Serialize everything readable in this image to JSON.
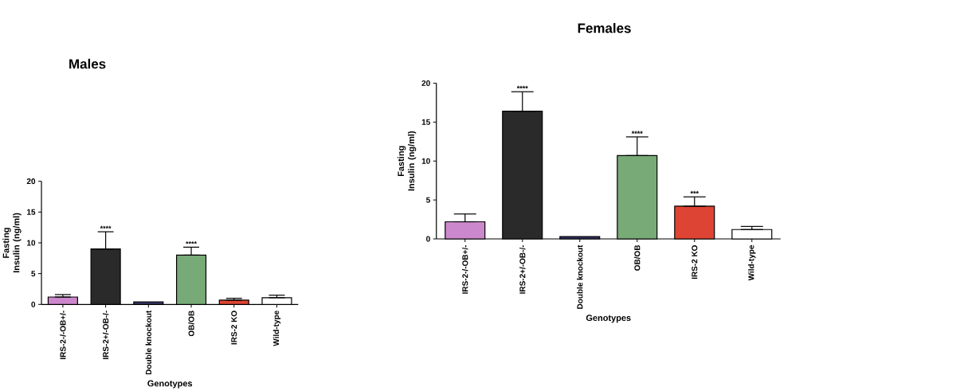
{
  "chart_data": [
    {
      "type": "bar",
      "title": "Males",
      "xlabel": "Genotypes",
      "ylabel": "Fasting Insulin (ng/ml)",
      "categories": [
        "IRS-2-/-OB+/-",
        "IRS-2+/-OB-/-",
        "Double knockout",
        "OB/OB",
        "IRS-2 KO",
        "Wild-type"
      ],
      "values": [
        1.2,
        9.0,
        0.4,
        8.0,
        0.7,
        1.1
      ],
      "colors": [
        "#cc88cc",
        "#2a2a2a",
        "#333366",
        "#77aa77",
        "#dd4433",
        "#ffffff"
      ],
      "errors": [
        [
          1.2,
          1.6
        ],
        [
          9.0,
          11.8
        ],
        null,
        [
          8.0,
          9.3
        ],
        [
          0.7,
          1.0
        ],
        [
          1.1,
          1.5
        ]
      ],
      "ylim": [
        0,
        20
      ],
      "yticks": [
        0,
        5,
        10,
        15,
        20
      ],
      "annotations": [
        {
          "text": "****",
          "x": "IRS-2+/-OB-/-",
          "y": 11.8
        },
        {
          "text": "****",
          "x": "OB/OB",
          "y": 9.3
        }
      ]
    },
    {
      "type": "bar",
      "title": "Females",
      "xlabel": "Genotypes",
      "ylabel": "Fasting Insulin (ng/ml)",
      "categories": [
        "IRS-2-/-OB+/-",
        "IRS-2+/-OB-/-",
        "Double knockout",
        "OB/OB",
        "IRS-2 KO",
        "Wild-type"
      ],
      "values": [
        2.2,
        16.4,
        0.3,
        10.7,
        4.2,
        1.2
      ],
      "colors": [
        "#cc88cc",
        "#2a2a2a",
        "#333366",
        "#77aa77",
        "#dd4433",
        "#ffffff"
      ],
      "errors": [
        [
          2.2,
          3.2
        ],
        [
          16.4,
          18.9
        ],
        null,
        [
          10.7,
          13.1
        ],
        [
          4.2,
          5.4
        ],
        [
          1.2,
          1.6
        ]
      ],
      "ylim": [
        0,
        20
      ],
      "yticks": [
        0,
        5,
        10,
        15,
        20
      ],
      "annotations": [
        {
          "text": "****",
          "x": "IRS-2+/-OB-/-",
          "y": 18.9
        },
        {
          "text": "****",
          "x": "OB/OB",
          "y": 13.1
        },
        {
          "text": "***",
          "x": "IRS-2 KO",
          "y": 5.4
        }
      ]
    }
  ]
}
